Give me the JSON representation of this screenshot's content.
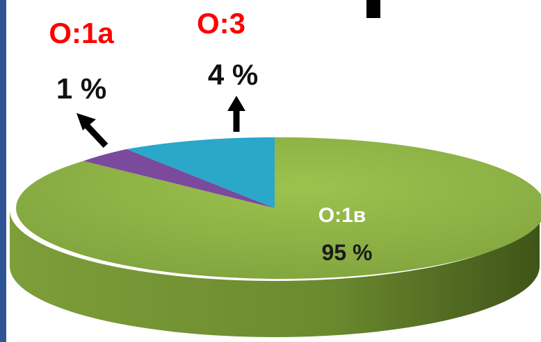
{
  "colors": {
    "left_border": "#2f5597",
    "slice_green": "#8cb045",
    "slice_green_side": "#5f7a2a",
    "slice_purple": "#7a4a9c",
    "slice_blue": "#2aa7c9",
    "category_label": "#ff0000",
    "value_label_outside": "#111111",
    "value_label_inside": "#1a1a1a",
    "arrow": "#000000"
  },
  "chart_data": {
    "type": "pie",
    "style": "3d",
    "slices": [
      {
        "label": "О:1в",
        "value_label": "95 %",
        "value": 95,
        "color": "#8cb045"
      },
      {
        "label": "О:1а",
        "value_label": "1 %",
        "value": 1,
        "color": "#7a4a9c"
      },
      {
        "label": "О:3",
        "value_label": "4  %",
        "value": 4,
        "color": "#2aa7c9"
      }
    ]
  }
}
